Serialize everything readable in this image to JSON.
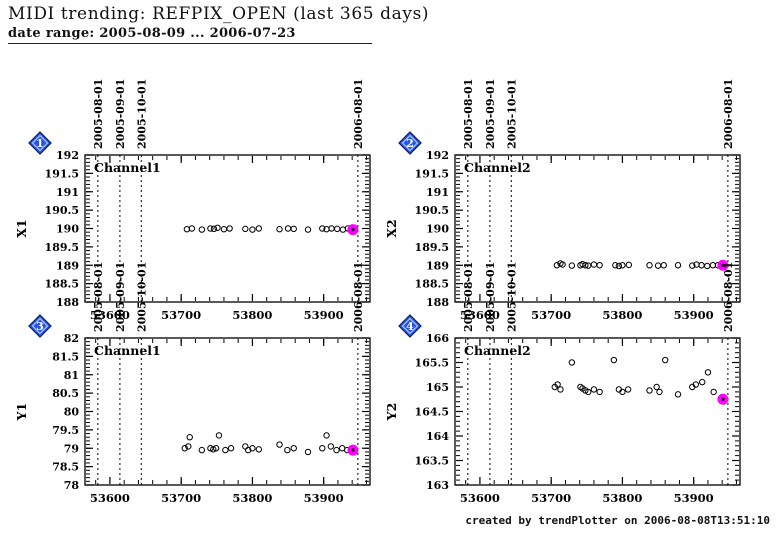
{
  "header": {
    "title": "MIDI trending: REFPIX_OPEN (last 365 days)",
    "date_range": "date range: 2005-08-09 ... 2006-07-23"
  },
  "footer": {
    "credit": "created by trendPlotter on 2006-08-08T13:51:10"
  },
  "colors": {
    "axis": "#000000",
    "highlight": "#ff00ff",
    "badge_fill": "#2953e8",
    "badge_edge": "#0a1f66",
    "badge_inner": "#9fc1ff",
    "badge_text": "#ffffff"
  },
  "chart_data": [
    {
      "type": "scatter",
      "badge": "1",
      "ylabel": "X1",
      "channel": "Channel1",
      "xlim": [
        53565,
        53965
      ],
      "ylim": [
        188,
        192
      ],
      "xticks": [
        53600,
        53700,
        53800,
        53900
      ],
      "xtick_labels": [
        "53600",
        "53700",
        "53800",
        "53900"
      ],
      "yticks": [
        188,
        188.5,
        189,
        189.5,
        190,
        190.5,
        191,
        191.5,
        192
      ],
      "ytick_labels": [
        "188",
        "188.5",
        "189",
        "189.5",
        "190",
        "190.5",
        "191",
        "191.5",
        "192"
      ],
      "date_lines": [
        {
          "mjd": 53583,
          "label": "2005-08-01"
        },
        {
          "mjd": 53614,
          "label": "2005-09-01"
        },
        {
          "mjd": 53644,
          "label": "2005-10-01"
        },
        {
          "mjd": 53948,
          "label": "2006-08-01"
        }
      ],
      "points": [
        [
          53708,
          189.98
        ],
        [
          53715,
          190.0
        ],
        [
          53729,
          189.97
        ],
        [
          53741,
          190.0
        ],
        [
          53746,
          189.99
        ],
        [
          53751,
          190.02
        ],
        [
          53760,
          189.98
        ],
        [
          53768,
          190.0
        ],
        [
          53790,
          189.99
        ],
        [
          53800,
          189.97
        ],
        [
          53809,
          190.0
        ],
        [
          53838,
          189.98
        ],
        [
          53850,
          190.0
        ],
        [
          53858,
          189.99
        ],
        [
          53878,
          189.97
        ],
        [
          53898,
          190.0
        ],
        [
          53904,
          189.98
        ],
        [
          53911,
          190.0
        ],
        [
          53919,
          189.99
        ],
        [
          53927,
          189.97
        ],
        [
          53934,
          190.0
        ]
      ],
      "highlight": [
        53941,
        189.97
      ]
    },
    {
      "type": "scatter",
      "badge": "2",
      "ylabel": "X2",
      "channel": "Channel2",
      "xlim": [
        53565,
        53965
      ],
      "ylim": [
        188,
        192
      ],
      "xticks": [
        53600,
        53700,
        53800,
        53900
      ],
      "xtick_labels": [
        "53600",
        "53700",
        "53800",
        "53900"
      ],
      "yticks": [
        188,
        188.5,
        189,
        189.5,
        190,
        190.5,
        191,
        191.5,
        192
      ],
      "ytick_labels": [
        "188",
        "188.5",
        "189",
        "189.5",
        "190",
        "190.5",
        "191",
        "191.5",
        "192"
      ],
      "date_lines": [
        {
          "mjd": 53583,
          "label": "2005-08-01"
        },
        {
          "mjd": 53614,
          "label": "2005-09-01"
        },
        {
          "mjd": 53644,
          "label": "2005-10-01"
        },
        {
          "mjd": 53948,
          "label": "2006-08-01"
        }
      ],
      "points": [
        [
          53708,
          189.0
        ],
        [
          53713,
          189.05
        ],
        [
          53716,
          189.02
        ],
        [
          53729,
          188.99
        ],
        [
          53741,
          189.0
        ],
        [
          53744,
          189.03
        ],
        [
          53748,
          189.0
        ],
        [
          53752,
          188.99
        ],
        [
          53760,
          189.02
        ],
        [
          53768,
          189.0
        ],
        [
          53790,
          189.0
        ],
        [
          53795,
          188.98
        ],
        [
          53800,
          189.0
        ],
        [
          53809,
          189.01
        ],
        [
          53838,
          189.0
        ],
        [
          53850,
          188.99
        ],
        [
          53858,
          189.0
        ],
        [
          53878,
          189.0
        ],
        [
          53898,
          188.99
        ],
        [
          53904,
          189.02
        ],
        [
          53911,
          189.0
        ],
        [
          53919,
          188.98
        ],
        [
          53927,
          189.0
        ],
        [
          53934,
          189.0
        ]
      ],
      "highlight": [
        53941,
        189.0
      ]
    },
    {
      "type": "scatter",
      "badge": "3",
      "ylabel": "Y1",
      "channel": "Channel1",
      "xlim": [
        53565,
        53965
      ],
      "ylim": [
        78,
        82
      ],
      "xticks": [
        53600,
        53700,
        53800,
        53900
      ],
      "xtick_labels": [
        "53600",
        "53700",
        "53800",
        "53900"
      ],
      "yticks": [
        78,
        78.5,
        79,
        79.5,
        80,
        80.5,
        81,
        81.5,
        82
      ],
      "ytick_labels": [
        "78",
        "78.5",
        "79",
        "79.5",
        "80",
        "80.5",
        "81",
        "81.5",
        "82"
      ],
      "date_lines": [
        {
          "mjd": 53583,
          "label": "2005-08-01"
        },
        {
          "mjd": 53614,
          "label": "2005-09-01"
        },
        {
          "mjd": 53644,
          "label": "2005-10-01"
        },
        {
          "mjd": 53948,
          "label": "2006-08-01"
        }
      ],
      "points": [
        [
          53705,
          79.0
        ],
        [
          53710,
          79.05
        ],
        [
          53712,
          79.3
        ],
        [
          53729,
          78.95
        ],
        [
          53741,
          79.0
        ],
        [
          53745,
          78.97
        ],
        [
          53749,
          79.0
        ],
        [
          53753,
          79.35
        ],
        [
          53762,
          78.95
        ],
        [
          53770,
          79.0
        ],
        [
          53790,
          79.05
        ],
        [
          53794,
          78.95
        ],
        [
          53800,
          79.0
        ],
        [
          53809,
          78.97
        ],
        [
          53838,
          79.1
        ],
        [
          53849,
          78.95
        ],
        [
          53858,
          79.0
        ],
        [
          53878,
          78.9
        ],
        [
          53898,
          79.0
        ],
        [
          53904,
          79.35
        ],
        [
          53910,
          79.05
        ],
        [
          53918,
          78.95
        ],
        [
          53926,
          79.0
        ],
        [
          53933,
          78.95
        ]
      ],
      "highlight": [
        53941,
        78.95
      ]
    },
    {
      "type": "scatter",
      "badge": "4",
      "ylabel": "Y2",
      "channel": "Channel2",
      "xlim": [
        53565,
        53965
      ],
      "ylim": [
        163,
        166
      ],
      "xticks": [
        53600,
        53700,
        53800,
        53900
      ],
      "xtick_labels": [
        "53600",
        "53700",
        "53800",
        "53900"
      ],
      "yticks": [
        163,
        163.5,
        164,
        164.5,
        165,
        165.5,
        166
      ],
      "ytick_labels": [
        "163",
        "163.5",
        "164",
        "164.5",
        "165",
        "165.5",
        "166"
      ],
      "date_lines": [
        {
          "mjd": 53583,
          "label": "2005-08-01"
        },
        {
          "mjd": 53614,
          "label": "2005-09-01"
        },
        {
          "mjd": 53644,
          "label": "2005-10-01"
        },
        {
          "mjd": 53948,
          "label": "2006-08-01"
        }
      ],
      "points": [
        [
          53705,
          165.0
        ],
        [
          53709,
          165.05
        ],
        [
          53713,
          164.95
        ],
        [
          53729,
          165.5
        ],
        [
          53741,
          165.0
        ],
        [
          53744,
          164.97
        ],
        [
          53748,
          164.93
        ],
        [
          53752,
          164.9
        ],
        [
          53760,
          164.95
        ],
        [
          53768,
          164.9
        ],
        [
          53788,
          165.55
        ],
        [
          53795,
          164.95
        ],
        [
          53800,
          164.9
        ],
        [
          53808,
          164.95
        ],
        [
          53838,
          164.93
        ],
        [
          53848,
          165.0
        ],
        [
          53852,
          164.9
        ],
        [
          53860,
          165.55
        ],
        [
          53878,
          164.85
        ],
        [
          53898,
          165.0
        ],
        [
          53903,
          165.05
        ],
        [
          53912,
          165.1
        ],
        [
          53920,
          165.3
        ],
        [
          53928,
          164.9
        ]
      ],
      "highlight": [
        53941,
        164.75
      ]
    }
  ]
}
